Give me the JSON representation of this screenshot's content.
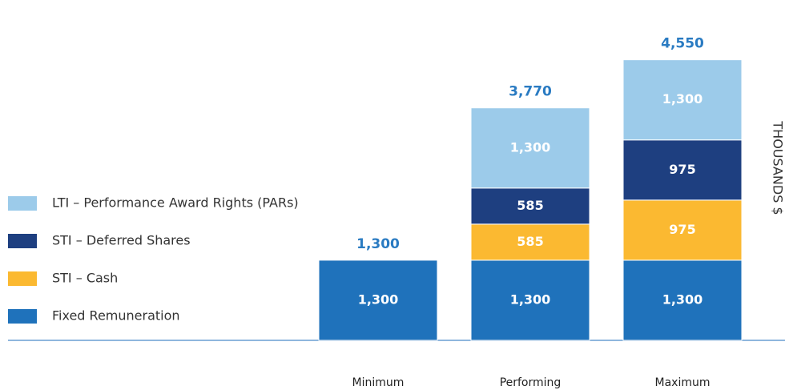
{
  "chart_data": {
    "type": "stacked_bar",
    "categories": [
      "Minimum",
      "Performing",
      "Maximum"
    ],
    "series": [
      {
        "name": "Fixed Remuneration",
        "color": "#1f72bb",
        "values": [
          1300,
          1300,
          1300
        ],
        "value_labels": [
          "1,300",
          "1,300",
          "1,300"
        ]
      },
      {
        "name": "STI – Cash",
        "color": "#fbb931",
        "values": [
          null,
          585,
          975
        ],
        "value_labels": [
          null,
          "585",
          "975"
        ]
      },
      {
        "name": "STI – Deferred Shares",
        "color": "#1e3f80",
        "values": [
          null,
          585,
          975
        ],
        "value_labels": [
          null,
          "585",
          "975"
        ]
      },
      {
        "name": "LTI – Performance Award Rights (PARs)",
        "color": "#9ccbea",
        "values": [
          null,
          1300,
          1300
        ],
        "value_labels": [
          null,
          "1,300",
          "1,300"
        ]
      }
    ],
    "totals": [
      1300,
      3770,
      4550
    ],
    "total_labels": [
      "1,300",
      "3,770",
      "4,550"
    ],
    "total_color": "#2a7bc2",
    "y_axis_label": "THOUSANDS $",
    "ylim": [
      0,
      5000
    ],
    "legend": "left"
  }
}
